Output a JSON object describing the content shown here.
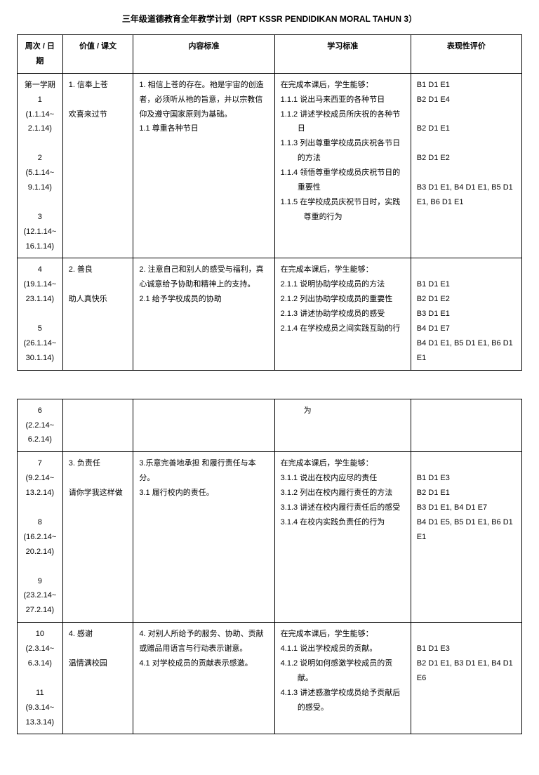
{
  "title": "三年级道德教育全年教学计划（RPT KSSR PENDIDIKAN MORAL TAHUN 3）",
  "headers": {
    "week": "周次 / 日期",
    "value": "价值 / 课文",
    "content": "内容标准",
    "learn": "学习标准",
    "eval": "表现性评价"
  },
  "t1": {
    "r1": {
      "week": "第一学期\n1\n(1.1.14~\n2.1.14)\n\n2\n(5.1.14~\n9.1.14)\n\n3\n(12.1.14~\n16.1.14)",
      "value": "1. 信奉上苍\n\n欢喜来过节",
      "content_1": "1. 相信上苍的存在。祂是宇宙的创造者，必须听从祂的旨意，并以宗教信仰及遵守国家原则为基础。",
      "content_2": "1.1 尊重各种节日",
      "learn_0": "在完成本课后，学生能够：",
      "learn_1": "1.1.1 说出马来西亚的各种节日",
      "learn_2": "1.1.2 讲述学校成员所庆祝的各种节日",
      "learn_3": "1.1.3 列出尊重学校成员庆祝各节日的方法",
      "learn_4": "1.1.4 领悟尊重学校成员庆祝节日的重要性",
      "learn_5": "1.1.5 在学校成员庆祝节日时，实践",
      "learn_6": "尊重的行为",
      "eval_1": "B1 D1 E1",
      "eval_2": "B2 D1 E4",
      "eval_3": "B2 D1 E1",
      "eval_4": "B2 D1 E2",
      "eval_5": "B3 D1 E1, B4 D1 E1, B5 D1 E1, B6 D1 E1"
    },
    "r2": {
      "week": "4\n(19.1.14~\n23.1.14)\n\n5\n(26.1.14~\n30.1.14)",
      "value": "2. 善良\n\n助人真快乐",
      "content_1": "2. 注意自己和别人的感受与福利，真心诚意给予协助和精神上的支持。",
      "content_2": "2.1 给予学校成员的协助",
      "learn_0": "在完成本课后，学生能够：",
      "learn_1": "2.1.1 说明协助学校成员的方法",
      "learn_2": "2.1.2 列出协助学校成员的重要性",
      "learn_3": "2.1.3 讲述协助学校成员的感受",
      "learn_4": "2.1.4 在学校成员之间实践互助的行",
      "eval_1": "B1 D1 E1",
      "eval_2": "B2 D1 E2",
      "eval_3": "B3 D1 E1",
      "eval_4": "B4 D1 E7",
      "eval_5": "B4 D1 E1, B5 D1 E1, B6 D1 E1"
    }
  },
  "t2": {
    "r1": {
      "week": "6\n(2.2.14~\n6.2.14)",
      "learn": "为"
    },
    "r2": {
      "week": "7\n(9.2.14~\n13.2.14)\n\n8\n(16.2.14~\n20.2.14)\n\n9\n(23.2.14~\n27.2.14)",
      "value": "3. 负责任\n\n请你学我这样做",
      "content_1": "3.乐意完善地承担 和履行责任与本分。",
      "content_2": "3.1 履行校内的责任。",
      "learn_0": "在完成本课后，学生能够：",
      "learn_1": "3.1.1 说出在校内应尽的责任",
      "learn_2": "3.1.2 列出在校内履行责任的方法",
      "learn_3": "3.1.3 讲述在校内履行责任后的感受",
      "learn_4": "3.1.4 在校内实践负责任的行为",
      "eval_1": "B1 D1 E3",
      "eval_2": "B2 D1 E1",
      "eval_3": "B3 D1 E1, B4 D1 E7",
      "eval_4": "B4 D1 E5, B5 D1 E1, B6 D1 E1"
    },
    "r3": {
      "week": "10\n(2.3.14~\n6.3.14)\n\n11\n(9.3.14~\n13.3.14)",
      "value": "4. 感谢\n\n温情满校园",
      "content_1": "4. 对别人所给予的服务、协助、贡献或赠品用语言与行动表示谢意。",
      "content_2": "4.1 对学校成员的贡献表示感激。",
      "learn_0": "在完成本课后，学生能够：",
      "learn_1": "4.1.1 说出学校成员的贡献。",
      "learn_2": "4.1.2 说明如何感激学校成员的贡献。",
      "learn_3": "4.1.3 讲述感激学校成员给予贡献后的感受。",
      "eval_1": "B1 D1 E3",
      "eval_2": "B2 D1 E1, B3 D1 E1, B4 D1 E6"
    }
  }
}
